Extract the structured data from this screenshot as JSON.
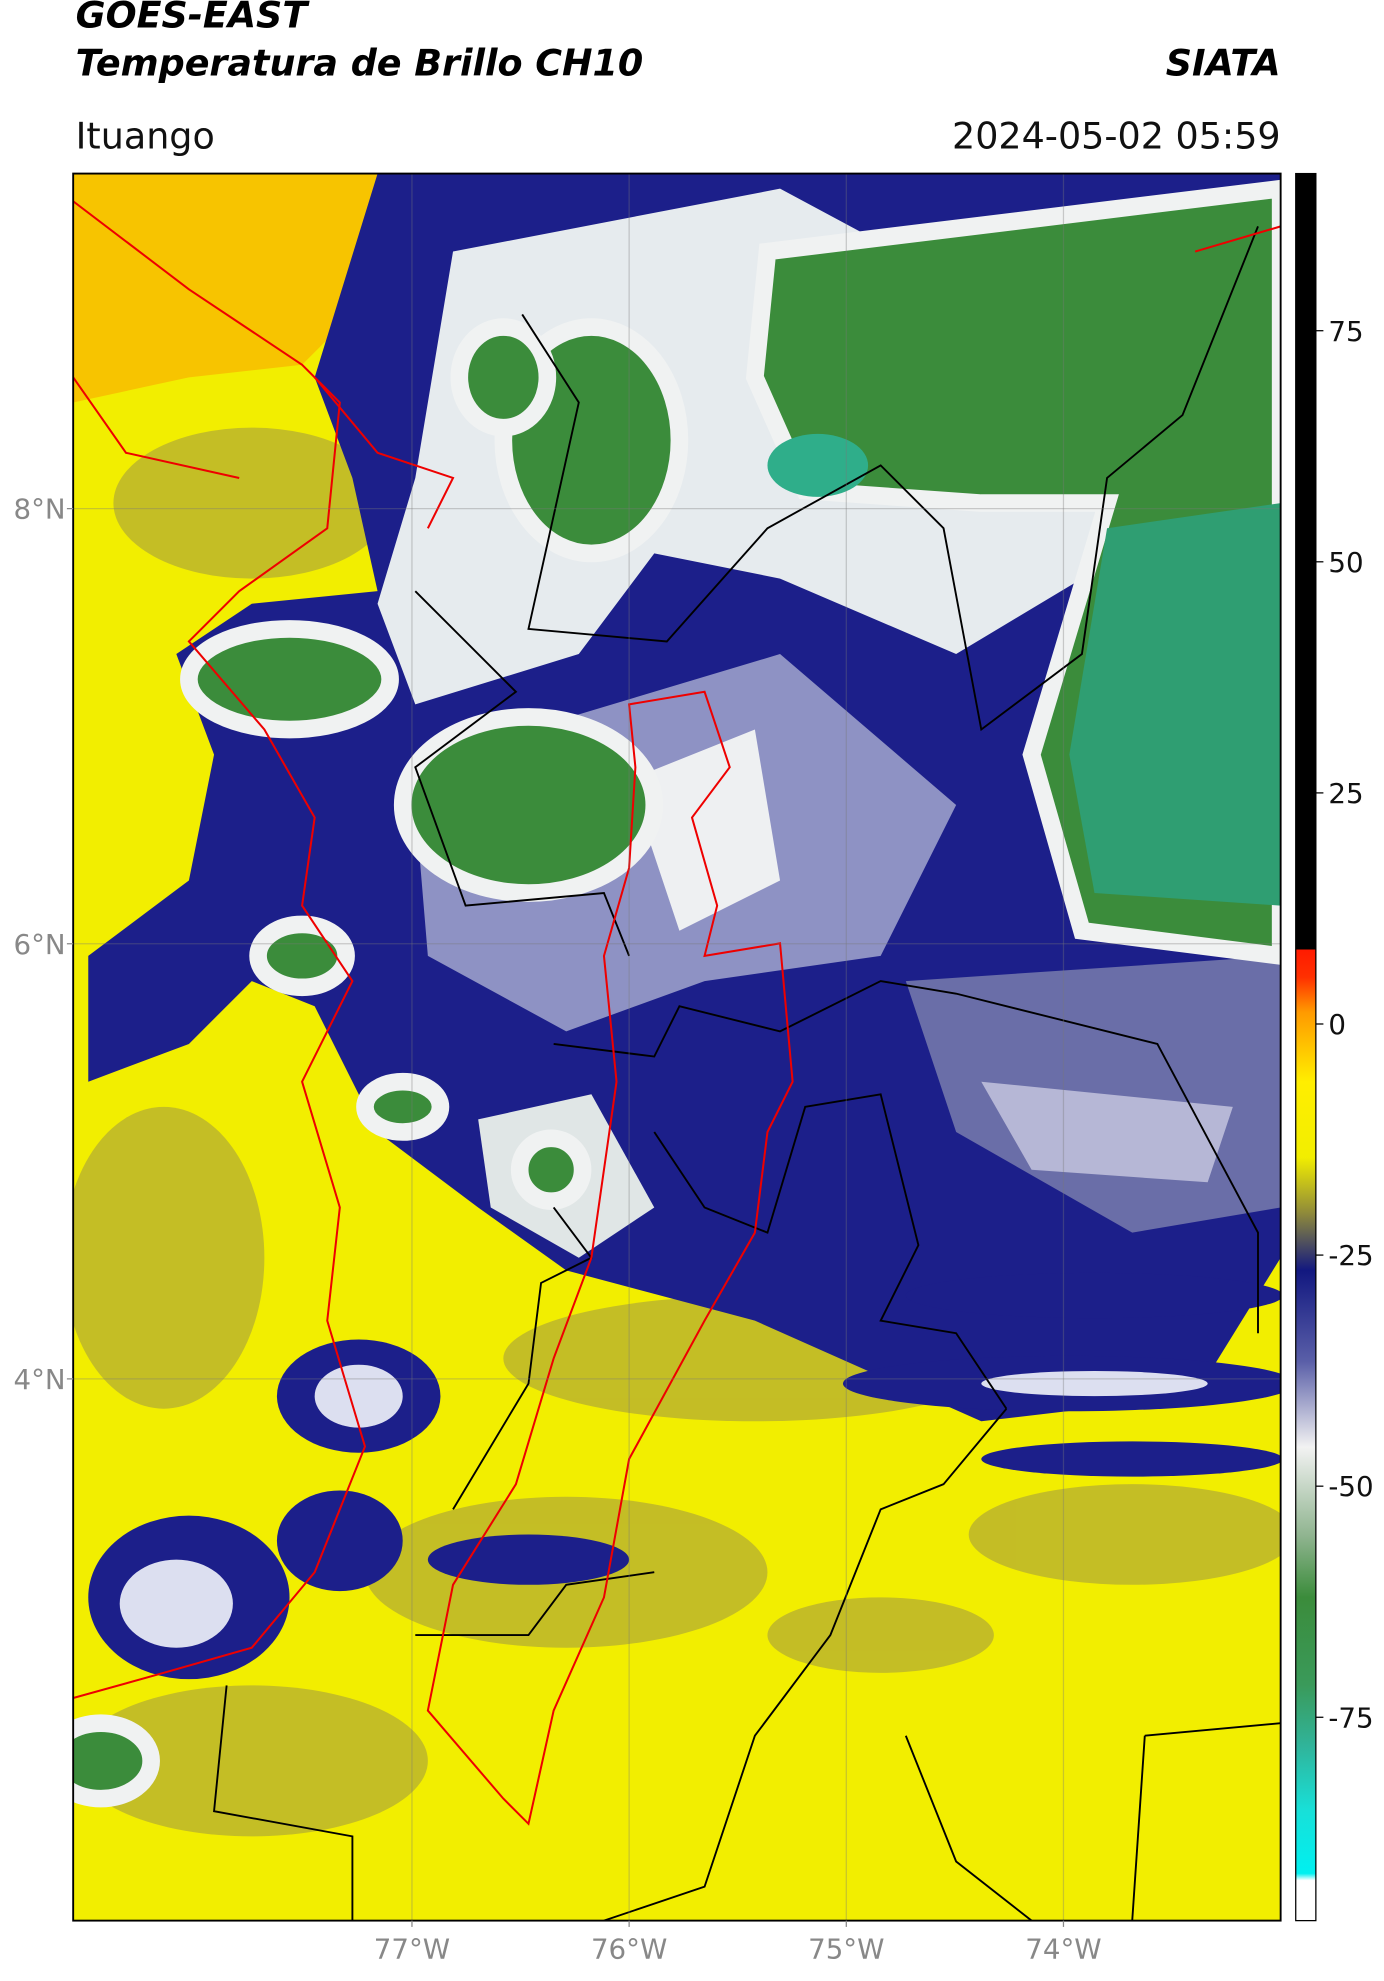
{
  "header": {
    "title": "GOES-EAST",
    "subtitle": "Temperatura de Brillo CH10",
    "source": "SIATA",
    "location": "Ituango",
    "datetime": "2024-05-02 05:59"
  },
  "map": {
    "lat_range": [
      1.51,
      9.54
    ],
    "lon_range": [
      -78.56,
      -73.0
    ],
    "lat_ticks": [
      {
        "value": 8,
        "label": "8°N"
      },
      {
        "value": 6,
        "label": "6°N"
      },
      {
        "value": 4,
        "label": "4°N"
      }
    ],
    "lon_ticks": [
      {
        "value": -77,
        "label": "77°W"
      },
      {
        "value": -76,
        "label": "76°W"
      },
      {
        "value": -75,
        "label": "75°W"
      },
      {
        "value": -74,
        "label": "74°W"
      }
    ],
    "grid": true
  },
  "colorbar": {
    "lim": [
      -97,
      92
    ],
    "ticks": [
      75,
      50,
      25,
      0,
      -25,
      -50,
      -75
    ]
  }
}
